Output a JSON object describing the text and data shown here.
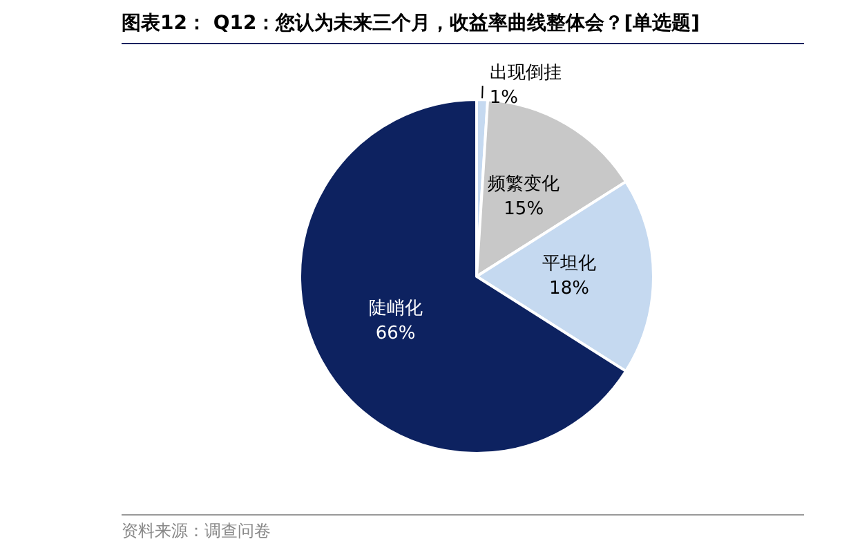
{
  "chart_data": {
    "type": "pie",
    "title": "图表12： Q12：您认为未来三个月，收益率曲线整体会？[单选题]",
    "categories": [
      "出现倒挂",
      "频繁变化",
      "平坦化",
      "陡峭化"
    ],
    "values": [
      1,
      15,
      18,
      66
    ],
    "value_labels": [
      "1%",
      "15%",
      "18%",
      "66%"
    ],
    "colors": [
      "#c5d9f0",
      "#c8c8c8",
      "#c5d9f0",
      "#0d2260"
    ],
    "legend": false,
    "annotations": [
      "资料来源：调查问卷"
    ]
  }
}
